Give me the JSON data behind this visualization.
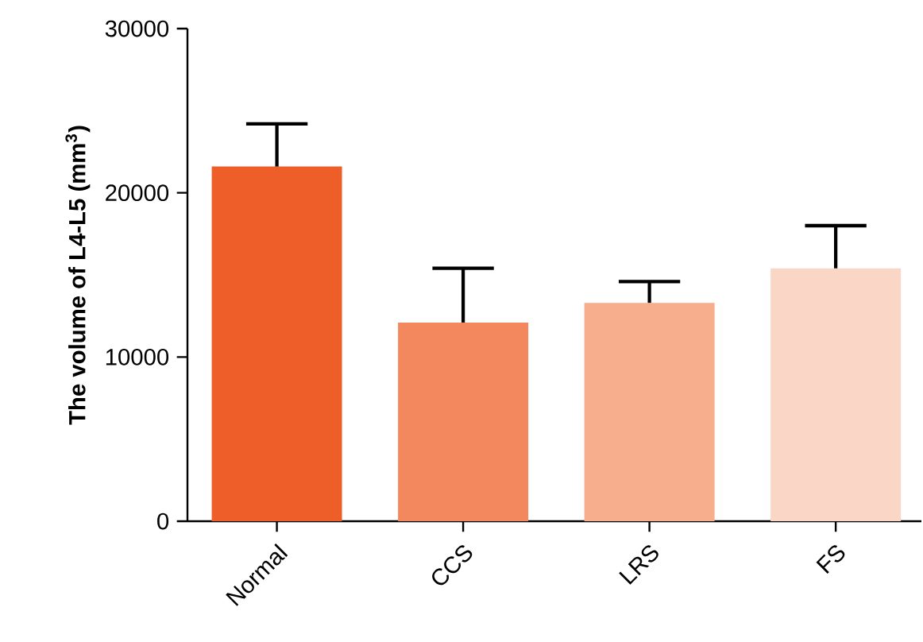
{
  "chart_data": {
    "type": "bar",
    "ylabel": "The volume of L4-L5 (mm$^{3}$)",
    "categories": [
      "Normal",
      "CCS",
      "LRS",
      "FS"
    ],
    "values": [
      21600,
      12100,
      13300,
      15400
    ],
    "errors": [
      2600,
      3300,
      1300,
      2600
    ],
    "colors": [
      "#ee5e28",
      "#f3875d",
      "#f6ae8d",
      "#fad6c6"
    ],
    "ylim": [
      0,
      30000
    ],
    "yticks": [
      0,
      10000,
      20000,
      30000
    ],
    "grid": false
  }
}
